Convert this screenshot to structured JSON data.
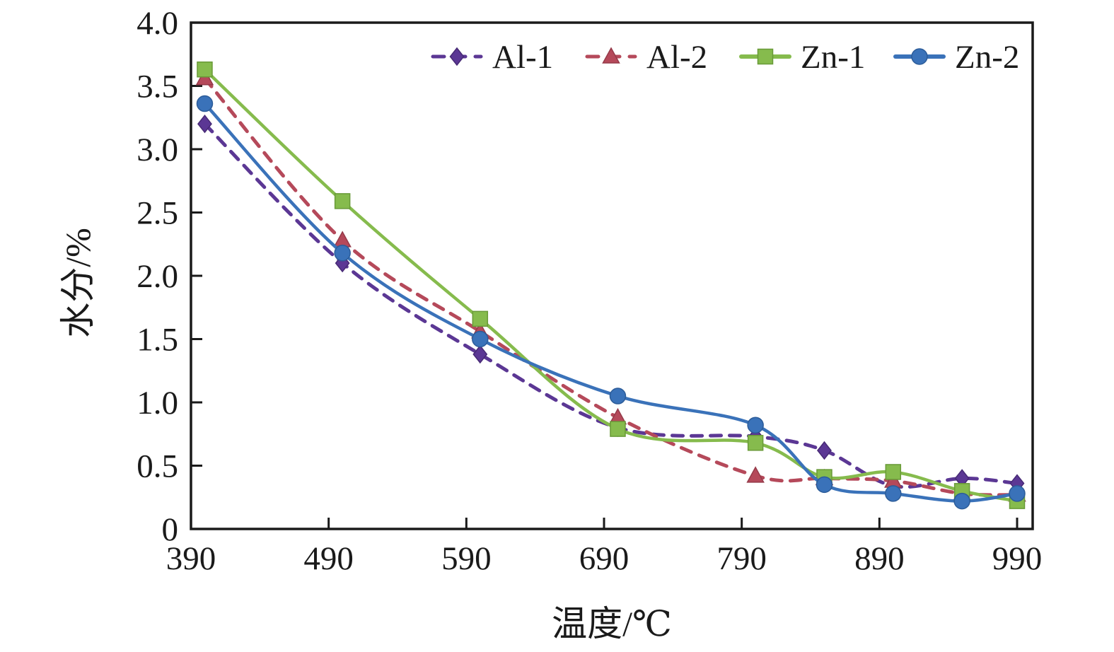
{
  "chart_data": {
    "type": "line",
    "title": "",
    "xlabel": "温度/℃",
    "ylabel": "水分/%",
    "x_ticks": [
      390,
      490,
      590,
      690,
      790,
      890,
      990
    ],
    "y_ticks": [
      0,
      0.5,
      1.0,
      1.5,
      2.0,
      2.5,
      3.0,
      3.5,
      4.0
    ],
    "y_tick_labels": [
      "0",
      "0.5",
      "1.0",
      "1.5",
      "2.0",
      "2.5",
      "3.0",
      "3.5",
      "4.0"
    ],
    "xlim": [
      390,
      1001
    ],
    "ylim": [
      0,
      4.0
    ],
    "grid": false,
    "legend_position": "top-inside-horizontal",
    "frame": "full-box",
    "x": [
      400,
      500,
      600,
      700,
      800,
      850,
      900,
      950,
      990
    ],
    "series": [
      {
        "name": "Al-1",
        "color": "#5b3794",
        "edge_color": "#472a75",
        "line_style": "dashed",
        "marker": "diamond",
        "values": [
          3.2,
          2.1,
          1.38,
          0.8,
          0.73,
          0.62,
          0.34,
          0.4,
          0.36
        ]
      },
      {
        "name": "Al-2",
        "color": "#b5495a",
        "edge_color": "#953a49",
        "line_style": "dashed",
        "marker": "triangle",
        "values": [
          3.56,
          2.28,
          1.56,
          0.88,
          0.42,
          0.4,
          0.38,
          0.28,
          0.27
        ]
      },
      {
        "name": "Zn-1",
        "color": "#86bb4d",
        "edge_color": "#699a38",
        "line_style": "solid",
        "marker": "square",
        "values": [
          3.63,
          2.59,
          1.66,
          0.79,
          0.68,
          0.41,
          0.45,
          0.3,
          0.22
        ]
      },
      {
        "name": "Zn-2",
        "color": "#3a72b9",
        "edge_color": "#2c5c99",
        "line_style": "solid",
        "marker": "circle",
        "values": [
          3.36,
          2.18,
          1.5,
          1.05,
          0.82,
          0.35,
          0.28,
          0.22,
          0.28
        ]
      }
    ],
    "ink_color": "#1a1a1a"
  }
}
